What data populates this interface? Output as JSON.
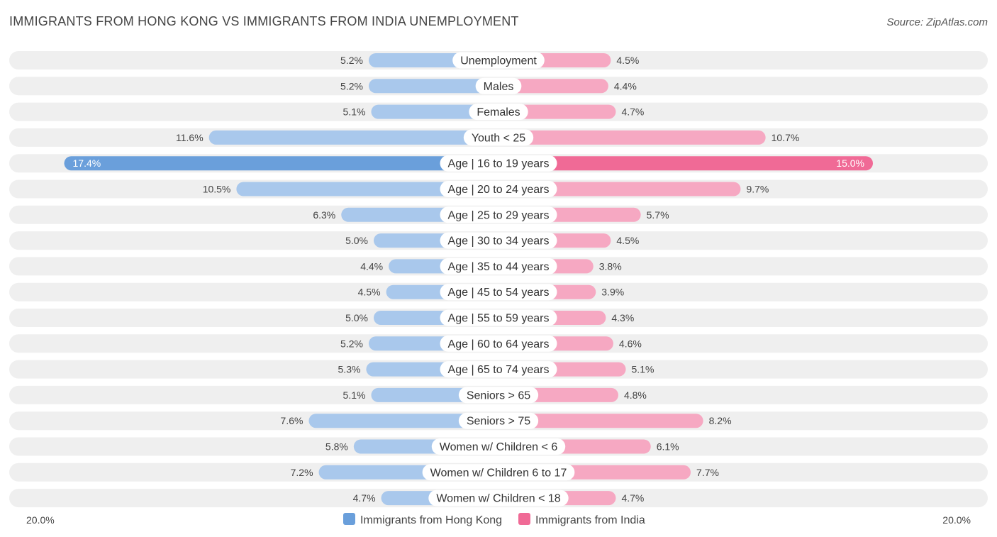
{
  "title": "IMMIGRANTS FROM HONG KONG VS IMMIGRANTS FROM INDIA UNEMPLOYMENT",
  "source": "Source: ZipAtlas.com",
  "colors": {
    "left_light": "#a9c8ec",
    "left_strong": "#6a9fdb",
    "right_light": "#f6a8c2",
    "right_strong": "#f06a96",
    "row_bg": "#efefef"
  },
  "chart_data": {
    "type": "bar",
    "orientation": "horizontal-diverging",
    "title": "IMMIGRANTS FROM HONG KONG VS IMMIGRANTS FROM INDIA UNEMPLOYMENT",
    "xlim": [
      -20,
      20
    ],
    "axis_left_label": "20.0%",
    "axis_right_label": "20.0%",
    "categories": [
      "Unemployment",
      "Males",
      "Females",
      "Youth < 25",
      "Age | 16 to 19 years",
      "Age | 20 to 24 years",
      "Age | 25 to 29 years",
      "Age | 30 to 34 years",
      "Age | 35 to 44 years",
      "Age | 45 to 54 years",
      "Age | 55 to 59 years",
      "Age | 60 to 64 years",
      "Age | 65 to 74 years",
      "Seniors > 65",
      "Seniors > 75",
      "Women w/ Children < 6",
      "Women w/ Children 6 to 17",
      "Women w/ Children < 18"
    ],
    "series": [
      {
        "name": "Immigrants from Hong Kong",
        "values": [
          5.2,
          5.2,
          5.1,
          11.6,
          17.4,
          10.5,
          6.3,
          5.0,
          4.4,
          4.5,
          5.0,
          5.2,
          5.3,
          5.1,
          7.6,
          5.8,
          7.2,
          4.7
        ],
        "labels": [
          "5.2%",
          "5.2%",
          "5.1%",
          "11.6%",
          "17.4%",
          "10.5%",
          "6.3%",
          "5.0%",
          "4.4%",
          "4.5%",
          "5.0%",
          "5.2%",
          "5.3%",
          "5.1%",
          "7.6%",
          "5.8%",
          "7.2%",
          "4.7%"
        ]
      },
      {
        "name": "Immigrants from India",
        "values": [
          4.5,
          4.4,
          4.7,
          10.7,
          15.0,
          9.7,
          5.7,
          4.5,
          3.8,
          3.9,
          4.3,
          4.6,
          5.1,
          4.8,
          8.2,
          6.1,
          7.7,
          4.7
        ],
        "labels": [
          "4.5%",
          "4.4%",
          "4.7%",
          "10.7%",
          "15.0%",
          "9.7%",
          "5.7%",
          "4.5%",
          "3.8%",
          "3.9%",
          "4.3%",
          "4.6%",
          "5.1%",
          "4.8%",
          "8.2%",
          "6.1%",
          "7.7%",
          "4.7%"
        ]
      }
    ],
    "legend": [
      "Immigrants from Hong Kong",
      "Immigrants from India"
    ],
    "legend_position": "bottom-center"
  }
}
